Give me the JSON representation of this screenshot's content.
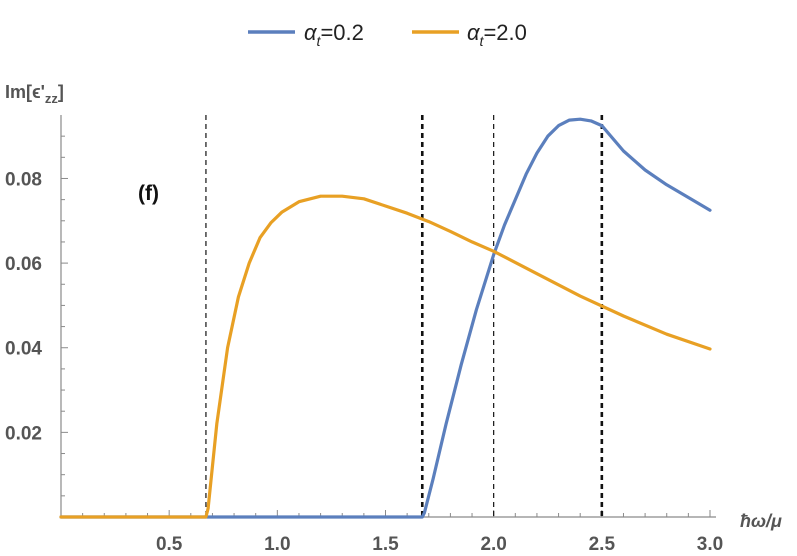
{
  "chart_data": {
    "type": "line",
    "title": "",
    "panel_label": "(f)",
    "xlabel": "ħω/μ",
    "ylabel": {
      "base": "Im[ϵ'",
      "sub": "zz",
      "close": "]"
    },
    "xlim": [
      0.0,
      3.0
    ],
    "ylim": [
      0.0,
      0.095
    ],
    "x_ticks": [
      0.5,
      1.0,
      1.5,
      2.0,
      2.5,
      3.0
    ],
    "x_tick_labels": [
      "0.5",
      "1.0",
      "1.5",
      "2.0",
      "2.5",
      "3.0"
    ],
    "y_ticks": [
      0.02,
      0.04,
      0.06,
      0.08
    ],
    "y_tick_labels": [
      "0.02",
      "0.04",
      "0.06",
      "0.08"
    ],
    "legend_position": "top",
    "legend": [
      {
        "symbol": "α",
        "sub": "t",
        "text": "=0.2",
        "color": "#5b7fbd"
      },
      {
        "symbol": "α",
        "sub": "t",
        "text": "=2.0",
        "color": "#e8a024"
      }
    ],
    "vlines": [
      {
        "x": 0.67,
        "style": "thin"
      },
      {
        "x": 1.67,
        "style": "thick"
      },
      {
        "x": 2.0,
        "style": "thin"
      },
      {
        "x": 2.5,
        "style": "thick"
      }
    ],
    "series": [
      {
        "color": "#5b7fbd",
        "x": [
          0.0,
          0.5,
          1.0,
          1.5,
          1.67,
          1.68,
          1.72,
          1.78,
          1.85,
          1.92,
          2.0,
          2.05,
          2.1,
          2.15,
          2.2,
          2.25,
          2.3,
          2.35,
          2.4,
          2.45,
          2.5,
          2.6,
          2.7,
          2.8,
          2.9,
          3.0
        ],
        "y": [
          0.0,
          0.0,
          0.0,
          0.0,
          0.0,
          0.001,
          0.009,
          0.022,
          0.036,
          0.049,
          0.062,
          0.069,
          0.075,
          0.081,
          0.086,
          0.09,
          0.0925,
          0.0938,
          0.094,
          0.0936,
          0.0925,
          0.0865,
          0.082,
          0.0785,
          0.0755,
          0.0725
        ]
      },
      {
        "color": "#e8a024",
        "x": [
          0.0,
          0.3,
          0.6,
          0.67,
          0.68,
          0.72,
          0.77,
          0.82,
          0.87,
          0.92,
          0.97,
          1.02,
          1.1,
          1.2,
          1.3,
          1.4,
          1.5,
          1.6,
          1.7,
          1.8,
          1.9,
          2.0,
          2.2,
          2.4,
          2.6,
          2.8,
          3.0
        ],
        "y": [
          0.0,
          0.0,
          0.0,
          0.0,
          0.002,
          0.022,
          0.04,
          0.052,
          0.06,
          0.066,
          0.0695,
          0.072,
          0.0745,
          0.0758,
          0.0758,
          0.0752,
          0.0735,
          0.0718,
          0.0698,
          0.0675,
          0.065,
          0.0628,
          0.0575,
          0.0522,
          0.0475,
          0.0432,
          0.0397
        ]
      }
    ]
  }
}
